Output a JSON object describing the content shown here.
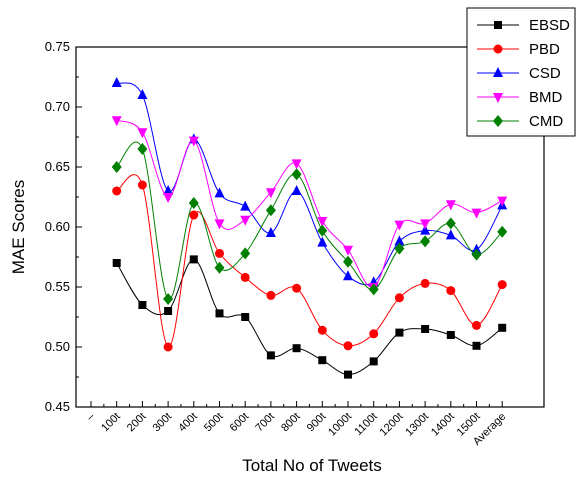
{
  "chart_data": {
    "type": "line",
    "xlabel": "Total No of Tweets",
    "ylabel": "MAE Scores",
    "ylim": [
      0.45,
      0.75
    ],
    "yticks": [
      "0.45",
      "0.50",
      "0.55",
      "0.60",
      "0.65",
      "0.70",
      "0.75"
    ],
    "categories": [
      "–",
      "100t",
      "200t",
      "300t",
      "400t",
      "500t",
      "600t",
      "700t",
      "800t",
      "900t",
      "1000t",
      "1100t",
      "1200t",
      "1300t",
      "1400t",
      "1500t",
      "Average"
    ],
    "grid": false,
    "legend_position": "top-right",
    "series": [
      {
        "name": "EBSD",
        "color": "#000000",
        "marker": "square",
        "values": [
          null,
          0.57,
          0.535,
          0.53,
          0.573,
          0.528,
          0.525,
          0.493,
          0.499,
          0.489,
          0.477,
          0.488,
          0.512,
          0.515,
          0.51,
          0.501,
          0.516
        ]
      },
      {
        "name": "PBD",
        "color": "#ff0000",
        "marker": "circle",
        "values": [
          null,
          0.63,
          0.635,
          0.5,
          0.61,
          0.578,
          0.558,
          0.543,
          0.549,
          0.514,
          0.501,
          0.511,
          0.541,
          0.553,
          0.547,
          0.518,
          0.552
        ]
      },
      {
        "name": "CSD",
        "color": "#0000ff",
        "marker": "triangle-up",
        "values": [
          null,
          0.72,
          0.71,
          0.63,
          0.673,
          0.628,
          0.617,
          0.595,
          0.63,
          0.587,
          0.559,
          0.554,
          0.588,
          0.597,
          0.593,
          0.581,
          0.618
        ]
      },
      {
        "name": "BMD",
        "color": "#ff00ff",
        "marker": "triangle-down",
        "values": [
          null,
          0.689,
          0.679,
          0.625,
          0.672,
          0.603,
          0.606,
          0.629,
          0.653,
          0.605,
          0.581,
          0.55,
          0.602,
          0.603,
          0.619,
          0.612,
          0.622
        ]
      },
      {
        "name": "CMD",
        "color": "#008000",
        "marker": "diamond",
        "values": [
          null,
          0.65,
          0.665,
          0.54,
          0.62,
          0.566,
          0.578,
          0.614,
          0.644,
          0.597,
          0.571,
          0.548,
          0.582,
          0.588,
          0.603,
          0.577,
          0.596
        ]
      }
    ]
  }
}
